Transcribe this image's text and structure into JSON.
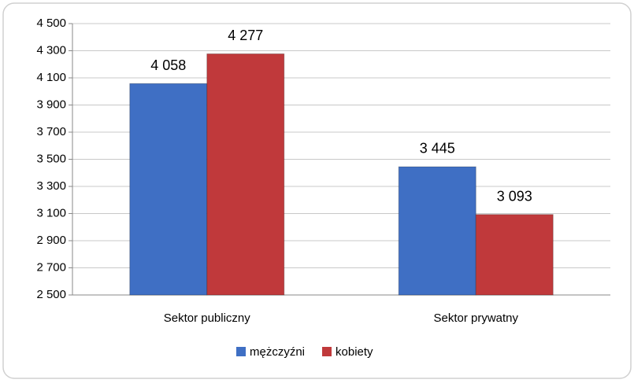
{
  "chart_data": {
    "type": "bar",
    "categories": [
      "Sektor publiczny",
      "Sektor prywatny"
    ],
    "series": [
      {
        "name": "mężczyźni",
        "color": "#3f6fc4",
        "values": [
          4058,
          3445
        ],
        "value_labels": [
          "4 058",
          "3 445"
        ]
      },
      {
        "name": "kobiety",
        "color": "#c0393b",
        "values": [
          4277,
          3093
        ],
        "value_labels": [
          "4 277",
          "3 093"
        ]
      }
    ],
    "ylim": [
      2500,
      4500
    ],
    "yticks": [
      {
        "value": 2500,
        "label": "2 500"
      },
      {
        "value": 2700,
        "label": "2 700"
      },
      {
        "value": 2900,
        "label": "2 900"
      },
      {
        "value": 3100,
        "label": "3 100"
      },
      {
        "value": 3300,
        "label": "3 300"
      },
      {
        "value": 3500,
        "label": "3 500"
      },
      {
        "value": 3700,
        "label": "3 700"
      },
      {
        "value": 3900,
        "label": "3 900"
      },
      {
        "value": 4100,
        "label": "4 100"
      },
      {
        "value": 4300,
        "label": "4 300"
      },
      {
        "value": 4500,
        "label": "4 500"
      }
    ],
    "grid": true,
    "legend": "bottom"
  }
}
